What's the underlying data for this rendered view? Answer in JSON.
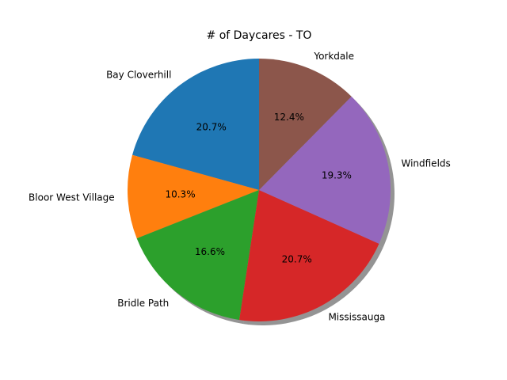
{
  "chart_data": {
    "type": "pie",
    "title": "# of Daycares - TO",
    "categories": [
      "Bay Cloverhill",
      "Bloor West Village",
      "Bridle Path",
      "Mississauga",
      "Windfields",
      "Yorkdale"
    ],
    "values": [
      20.7,
      10.3,
      16.6,
      20.7,
      19.3,
      12.4
    ],
    "percent_labels": [
      "20.7%",
      "10.3%",
      "16.6%",
      "20.7%",
      "19.3%",
      "12.4%"
    ],
    "colors": [
      "#1f77b4",
      "#ff7f0e",
      "#2ca02c",
      "#d62728",
      "#9467bd",
      "#8c564b"
    ],
    "start_angle_deg": 90,
    "direction": "counterclockwise",
    "shadow": true,
    "legend": "none"
  }
}
